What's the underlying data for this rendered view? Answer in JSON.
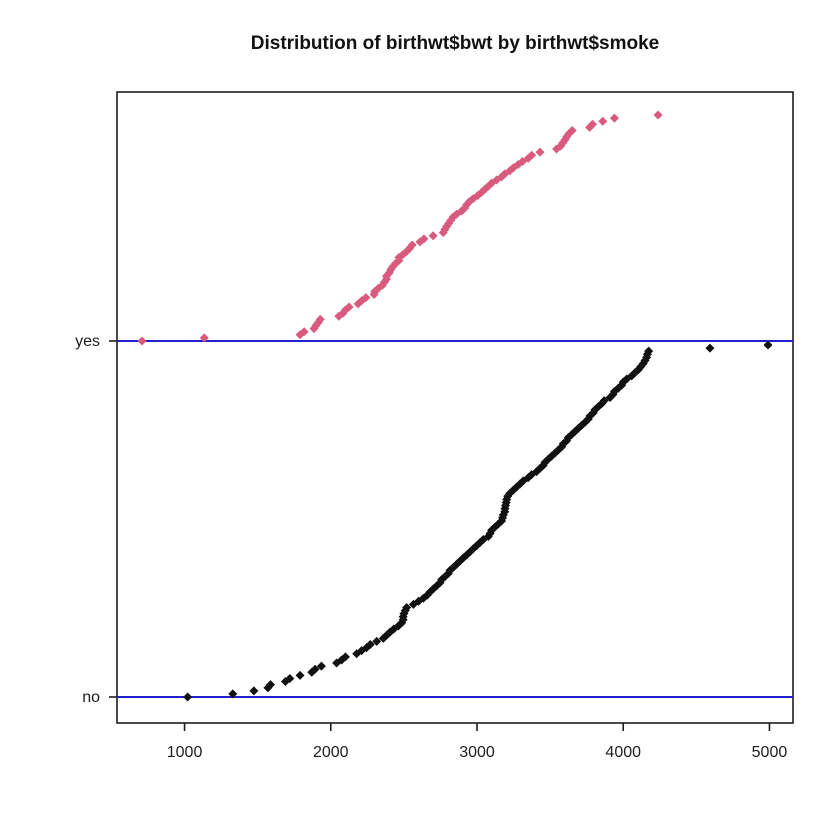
{
  "title": "Distribution of birthwt$bwt by birthwt$smoke",
  "colors": {
    "background": "#ffffff",
    "axis": "#1d1d1d",
    "baseline_blue": "#2222cc",
    "group_yes_points": "#d85b7e",
    "group_no_points": "#111111"
  },
  "x_axis": {
    "tick_values": [
      1000,
      2000,
      3000,
      4000,
      5000
    ],
    "tick_labels": [
      "1000",
      "2000",
      "3000",
      "4000",
      "5000"
    ]
  },
  "y_axis": {
    "tick_labels": [
      "yes",
      "no"
    ]
  },
  "chart_data": {
    "type": "scatter",
    "title": "Distribution of birthwt$bwt by birthwt$smoke",
    "xlabel": "",
    "ylabel": "",
    "xlim": [
      538,
      5161
    ],
    "x_ticks": [
      1000,
      2000,
      3000,
      4000,
      5000
    ],
    "grid": false,
    "legend": "none",
    "marker": "filled-diamond",
    "layout_note": "Each group plotted as sorted values; y position within a group increases with rank from the group's blue baseline. Blue horizontal reference line at each group level, labels yes/no on left axis.",
    "groups": [
      {
        "label": "yes",
        "color": "#d85b7e",
        "n": 74,
        "values": [
          709,
          1135,
          1790,
          1818,
          1885,
          1899,
          1915,
          1928,
          2055,
          2084,
          2100,
          2125,
          2187,
          2211,
          2240,
          2296,
          2301,
          2325,
          2353,
          2367,
          2381,
          2381,
          2400,
          2410,
          2424,
          2442,
          2466,
          2466,
          2495,
          2520,
          2540,
          2557,
          2610,
          2637,
          2700,
          2769,
          2780,
          2792,
          2807,
          2821,
          2836,
          2861,
          2895,
          2917,
          2929,
          2948,
          2974,
          3005,
          3031,
          3054,
          3077,
          3100,
          3134,
          3168,
          3190,
          3225,
          3250,
          3281,
          3311,
          3350,
          3374,
          3431,
          3544,
          3572,
          3586,
          3602,
          3614,
          3629,
          3651,
          3770,
          3790,
          3860,
          3940,
          4238
        ]
      },
      {
        "label": "no",
        "color": "#111111",
        "n": 115,
        "values": [
          1021,
          1330,
          1474,
          1570,
          1588,
          1690,
          1720,
          1790,
          1870,
          1893,
          1936,
          2040,
          2074,
          2100,
          2177,
          2211,
          2245,
          2270,
          2314,
          2359,
          2382,
          2405,
          2430,
          2462,
          2485,
          2495,
          2495,
          2500,
          2510,
          2519,
          2565,
          2600,
          2633,
          2660,
          2679,
          2701,
          2724,
          2747,
          2758,
          2781,
          2804,
          2815,
          2838,
          2861,
          2883,
          2906,
          2929,
          2952,
          2974,
          2997,
          3020,
          3043,
          3077,
          3090,
          3100,
          3122,
          3145,
          3168,
          3175,
          3180,
          3190,
          3191,
          3195,
          3200,
          3203,
          3210,
          3225,
          3248,
          3271,
          3294,
          3316,
          3350,
          3373,
          3407,
          3430,
          3453,
          3465,
          3487,
          3510,
          3533,
          3556,
          3579,
          3590,
          3613,
          3624,
          3648,
          3670,
          3693,
          3716,
          3739,
          3761,
          3772,
          3795,
          3806,
          3829,
          3853,
          3870,
          3910,
          3930,
          3940,
          3966,
          3990,
          4000,
          4024,
          4058,
          4080,
          4103,
          4120,
          4137,
          4149,
          4160,
          4165,
          4174,
          4593,
          4990
        ]
      }
    ]
  }
}
